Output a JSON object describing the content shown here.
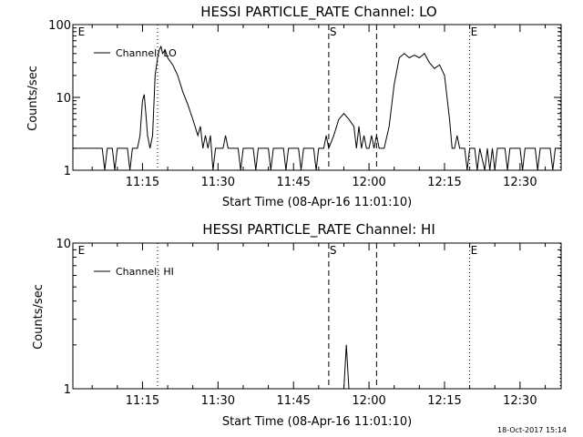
{
  "chart_data": [
    {
      "type": "line",
      "title": "HESSI PARTICLE_RATE Channel: LO",
      "xlabel": "Start Time (08-Apr-16 11:01:10)",
      "ylabel": "Counts/sec",
      "y_scale": "log",
      "ylim": [
        1,
        100
      ],
      "xlim": [
        "11:01:10",
        "12:38:10"
      ],
      "x_ticks": [
        "11:15",
        "11:30",
        "11:45",
        "12:00",
        "12:15",
        "12:30"
      ],
      "y_ticks": [
        "1",
        "10",
        "100"
      ],
      "legend": {
        "placement": "top-left",
        "entries": [
          "Channel: LO"
        ]
      },
      "markers": [
        {
          "time": "11:02:00",
          "label": "E",
          "style": "none"
        },
        {
          "time": "11:18:00",
          "label": "",
          "style": "dotted"
        },
        {
          "time": "11:52:00",
          "label": "S",
          "style": "dashed"
        },
        {
          "time": "12:01:30",
          "label": "",
          "style": "dashed"
        },
        {
          "time": "12:20:00",
          "label": "E",
          "style": "dotted"
        },
        {
          "time": "12:38:00",
          "label": "",
          "style": "dotted"
        }
      ],
      "series": [
        {
          "name": "Channel: LO",
          "color": "#000000",
          "points": [
            [
              "11:01:10",
              2
            ],
            [
              "11:07:00",
              2
            ],
            [
              "11:07:30",
              1
            ],
            [
              "11:08:00",
              2
            ],
            [
              "11:09:00",
              2
            ],
            [
              "11:09:30",
              1
            ],
            [
              "11:10:00",
              2
            ],
            [
              "11:12:00",
              2
            ],
            [
              "11:12:30",
              1
            ],
            [
              "11:13:00",
              2
            ],
            [
              "11:14:00",
              2
            ],
            [
              "11:14:30",
              3
            ],
            [
              "11:15:00",
              9
            ],
            [
              "11:15:20",
              11
            ],
            [
              "11:15:40",
              6
            ],
            [
              "11:16:00",
              3
            ],
            [
              "11:16:30",
              2
            ],
            [
              "11:17:00",
              3
            ],
            [
              "11:17:30",
              20
            ],
            [
              "11:18:00",
              35
            ],
            [
              "11:18:20",
              45
            ],
            [
              "11:18:40",
              50
            ],
            [
              "11:19:00",
              40
            ],
            [
              "11:19:30",
              45
            ],
            [
              "11:20:00",
              35
            ],
            [
              "11:21:00",
              28
            ],
            [
              "11:22:00",
              20
            ],
            [
              "11:23:00",
              12
            ],
            [
              "11:24:00",
              8
            ],
            [
              "11:25:00",
              5
            ],
            [
              "11:26:00",
              3
            ],
            [
              "11:26:30",
              4
            ],
            [
              "11:27:00",
              2
            ],
            [
              "11:27:30",
              3
            ],
            [
              "11:28:00",
              2
            ],
            [
              "11:28:30",
              3
            ],
            [
              "11:29:00",
              1
            ],
            [
              "11:29:30",
              2
            ],
            [
              "11:31:00",
              2
            ],
            [
              "11:31:30",
              3
            ],
            [
              "11:32:00",
              2
            ],
            [
              "11:34:00",
              2
            ],
            [
              "11:34:30",
              1
            ],
            [
              "11:35:00",
              2
            ],
            [
              "11:37:00",
              2
            ],
            [
              "11:37:30",
              1
            ],
            [
              "11:38:00",
              2
            ],
            [
              "11:40:00",
              2
            ],
            [
              "11:40:30",
              1
            ],
            [
              "11:41:00",
              2
            ],
            [
              "11:43:00",
              2
            ],
            [
              "11:43:30",
              1
            ],
            [
              "11:44:00",
              2
            ],
            [
              "11:46:00",
              2
            ],
            [
              "11:46:30",
              1
            ],
            [
              "11:47:00",
              2
            ],
            [
              "11:49:00",
              2
            ],
            [
              "11:49:30",
              1
            ],
            [
              "11:50:00",
              2
            ],
            [
              "11:51:00",
              2
            ],
            [
              "11:51:30",
              3
            ],
            [
              "11:52:00",
              2
            ],
            [
              "11:53:00",
              3
            ],
            [
              "11:54:00",
              5
            ],
            [
              "11:55:00",
              6
            ],
            [
              "11:56:00",
              5
            ],
            [
              "11:57:00",
              4
            ],
            [
              "11:57:30",
              2
            ],
            [
              "11:58:00",
              4
            ],
            [
              "11:58:30",
              2
            ],
            [
              "11:59:00",
              3
            ],
            [
              "11:59:30",
              2
            ],
            [
              "12:00:00",
              2
            ],
            [
              "12:00:30",
              3
            ],
            [
              "12:01:00",
              2
            ],
            [
              "12:01:30",
              3
            ],
            [
              "12:02:00",
              2
            ],
            [
              "12:03:00",
              2
            ],
            [
              "12:04:00",
              4
            ],
            [
              "12:05:00",
              15
            ],
            [
              "12:06:00",
              35
            ],
            [
              "12:07:00",
              40
            ],
            [
              "12:08:00",
              35
            ],
            [
              "12:09:00",
              38
            ],
            [
              "12:10:00",
              35
            ],
            [
              "12:11:00",
              40
            ],
            [
              "12:12:00",
              30
            ],
            [
              "12:13:00",
              25
            ],
            [
              "12:14:00",
              28
            ],
            [
              "12:15:00",
              20
            ],
            [
              "12:16:00",
              5
            ],
            [
              "12:16:30",
              2
            ],
            [
              "12:17:00",
              2
            ],
            [
              "12:17:30",
              3
            ],
            [
              "12:18:00",
              2
            ],
            [
              "12:19:00",
              2
            ],
            [
              "12:19:30",
              1
            ],
            [
              "12:20:00",
              2
            ],
            [
              "12:21:00",
              2
            ],
            [
              "12:21:30",
              1
            ],
            [
              "12:22:00",
              2
            ],
            [
              "12:23:00",
              1
            ],
            [
              "12:23:30",
              2
            ],
            [
              "12:24:00",
              1
            ],
            [
              "12:24:30",
              2
            ],
            [
              "12:25:00",
              1
            ],
            [
              "12:25:30",
              2
            ],
            [
              "12:27:00",
              2
            ],
            [
              "12:27:30",
              1
            ],
            [
              "12:28:00",
              2
            ],
            [
              "12:30:00",
              2
            ],
            [
              "12:30:30",
              1
            ],
            [
              "12:31:00",
              2
            ],
            [
              "12:33:00",
              2
            ],
            [
              "12:33:30",
              1
            ],
            [
              "12:34:00",
              2
            ],
            [
              "12:36:00",
              2
            ],
            [
              "12:36:30",
              1
            ],
            [
              "12:37:00",
              2
            ],
            [
              "12:38:10",
              2
            ]
          ]
        }
      ]
    },
    {
      "type": "line",
      "title": "HESSI PARTICLE_RATE Channel: HI",
      "xlabel": "Start Time (08-Apr-16 11:01:10)",
      "ylabel": "Counts/sec",
      "y_scale": "log",
      "ylim": [
        1,
        10
      ],
      "xlim": [
        "11:01:10",
        "12:38:10"
      ],
      "x_ticks": [
        "11:15",
        "11:30",
        "11:45",
        "12:00",
        "12:15",
        "12:30"
      ],
      "y_ticks": [
        "1",
        "10"
      ],
      "legend": {
        "placement": "top-left",
        "entries": [
          "Channel: HI"
        ]
      },
      "markers": [
        {
          "time": "11:02:00",
          "label": "E",
          "style": "none"
        },
        {
          "time": "11:18:00",
          "label": "",
          "style": "dotted"
        },
        {
          "time": "11:52:00",
          "label": "S",
          "style": "dashed"
        },
        {
          "time": "12:01:30",
          "label": "",
          "style": "dashed"
        },
        {
          "time": "12:20:00",
          "label": "E",
          "style": "dotted"
        },
        {
          "time": "12:38:00",
          "label": "",
          "style": "dotted"
        }
      ],
      "series": [
        {
          "name": "Channel: HI",
          "color": "#000000",
          "points": [
            [
              "11:55:00",
              1
            ],
            [
              "11:55:30",
              2
            ],
            [
              "11:56:00",
              1
            ]
          ]
        }
      ]
    }
  ],
  "footer": {
    "timestamp": "18-Oct-2017 15:14"
  }
}
